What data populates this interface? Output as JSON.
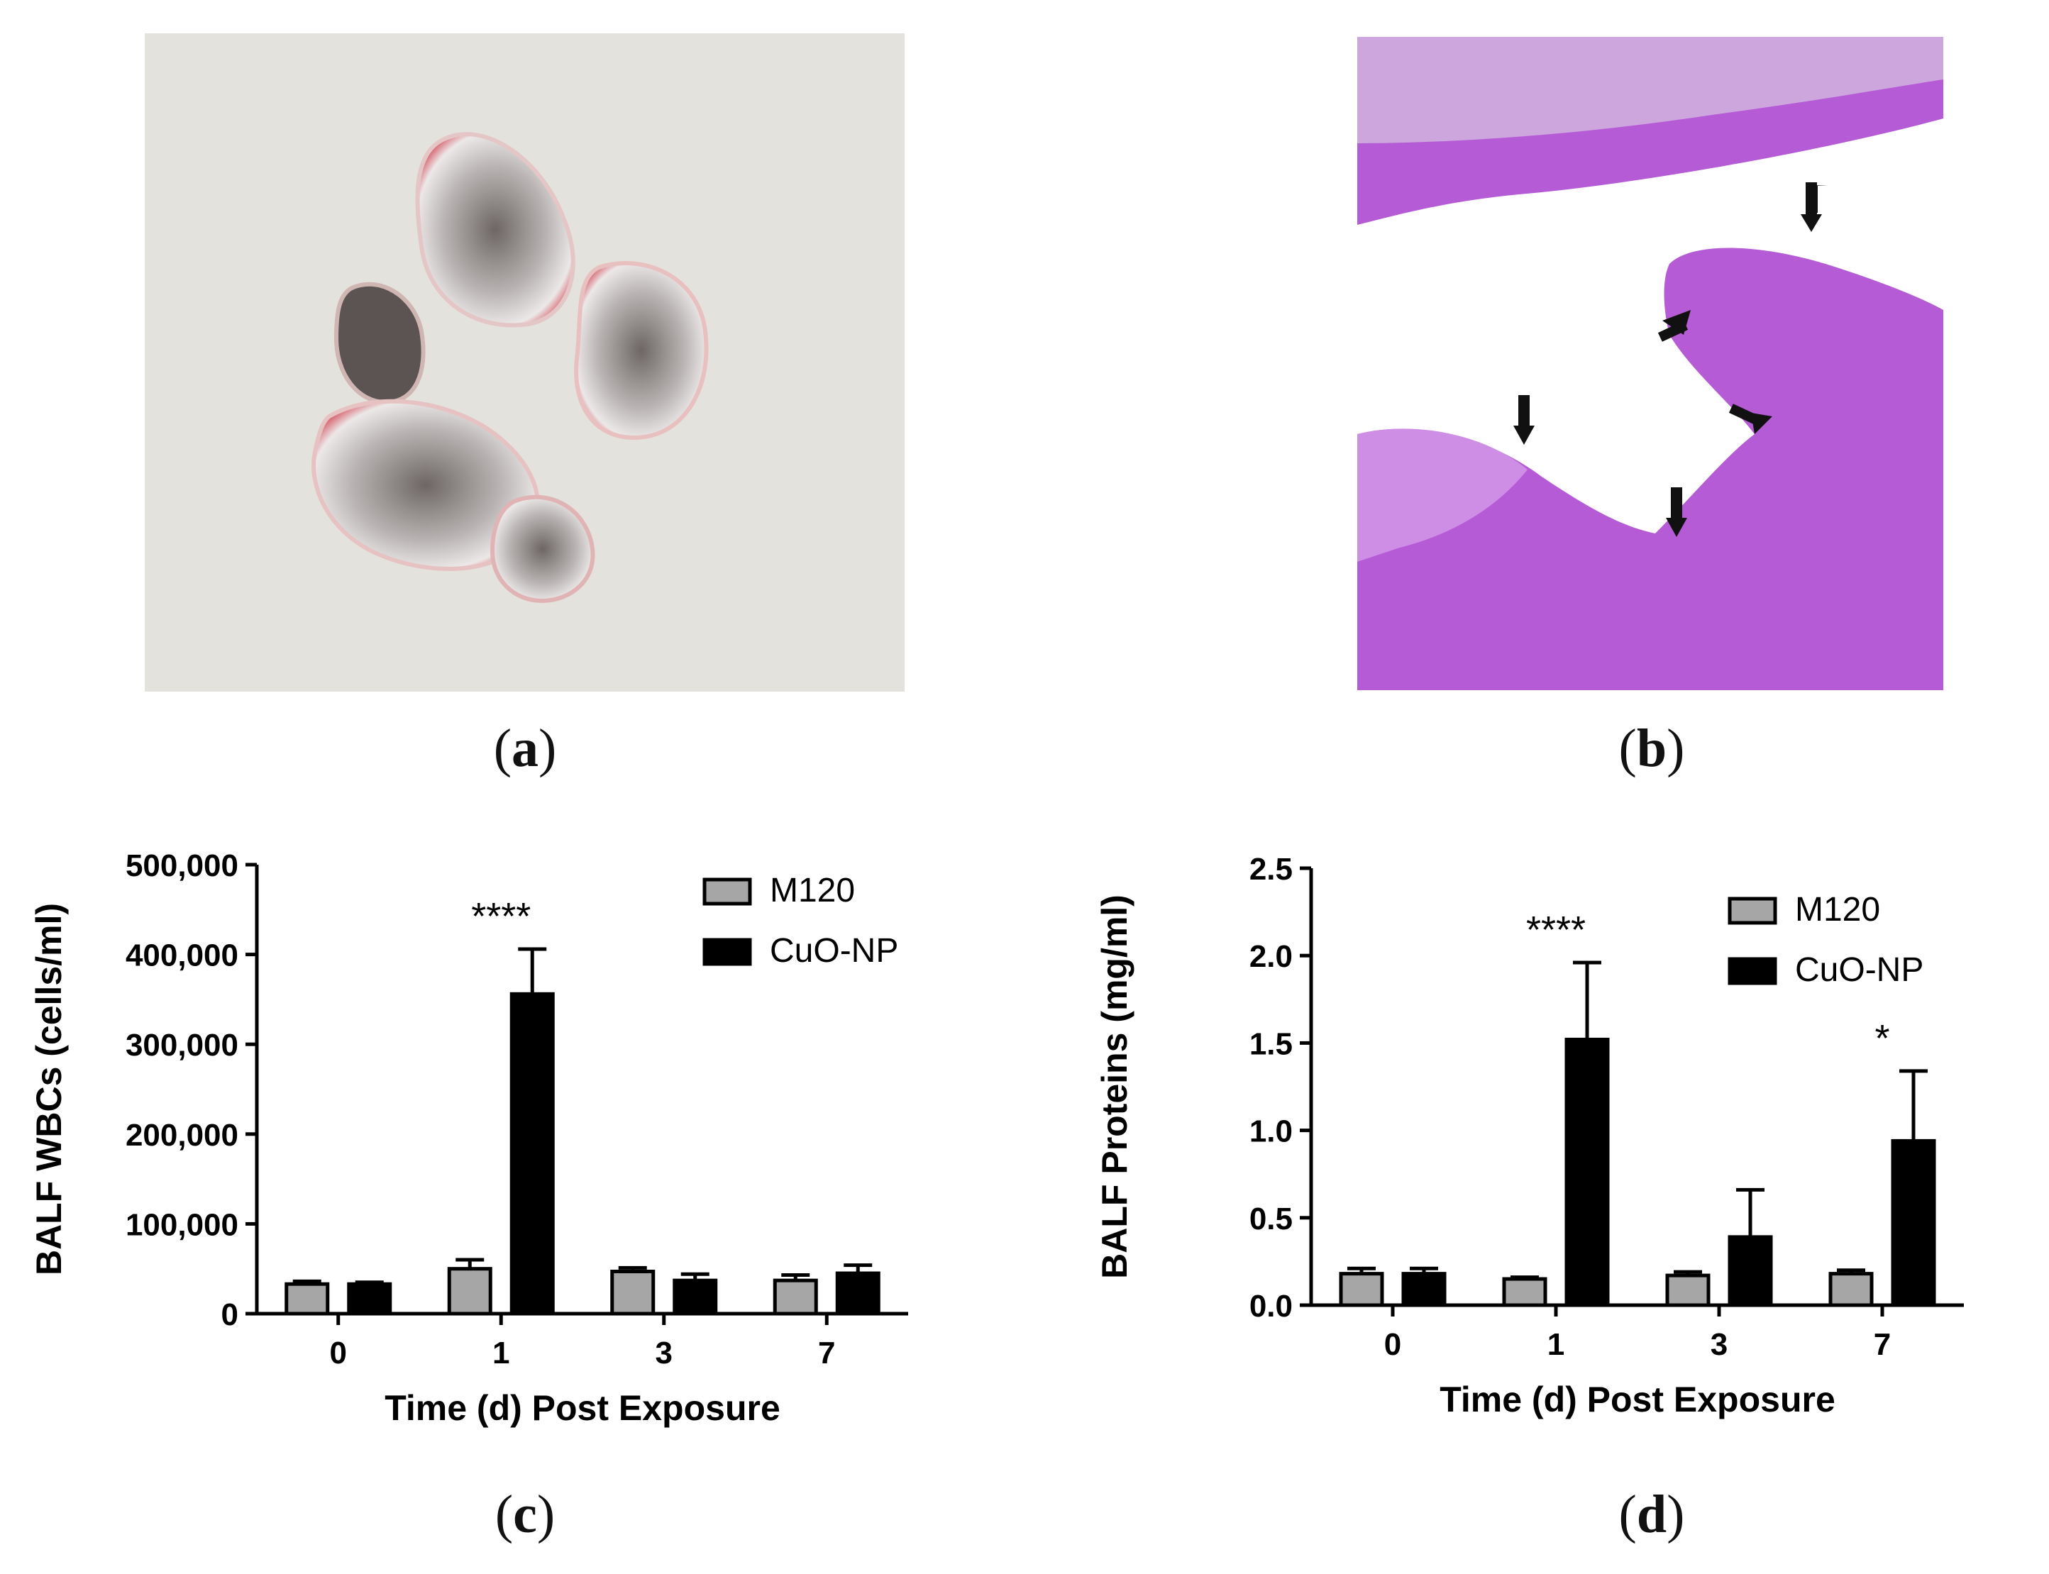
{
  "panels": {
    "a": {
      "label_open": "(",
      "label_letter": "a",
      "label_close": ")"
    },
    "b": {
      "label_open": "(",
      "label_letter": "b",
      "label_close": ")"
    },
    "c": {
      "label_open": "(",
      "label_letter": "c",
      "label_close": ")"
    },
    "d": {
      "label_open": "(",
      "label_letter": "d",
      "label_close": ")"
    }
  },
  "colors": {
    "m120": "#a6a6a6",
    "cuo": "#000000",
    "tissue": "#b65bd6",
    "background_photo": "#e4e2dc"
  },
  "chart_data": [
    {
      "type": "bar",
      "categories": [
        "0",
        "1",
        "3",
        "7"
      ],
      "xlabel": "Time (d) Post Exposure",
      "ylabel": "BALF WBCs (cells/ml)",
      "ylim": [
        0,
        500000
      ],
      "yticks": [
        "0",
        "100,000",
        "200,000",
        "300,000",
        "400,000",
        "500,000"
      ],
      "legend_position": "top-right",
      "series": [
        {
          "name": "M120",
          "values": [
            33000,
            50000,
            47000,
            37000
          ],
          "errors": [
            3000,
            10000,
            4000,
            6000
          ]
        },
        {
          "name": "CuO-NP",
          "values": [
            33000,
            356000,
            37000,
            45000
          ],
          "errors": [
            2000,
            50000,
            7000,
            9000
          ]
        }
      ],
      "annotations": [
        {
          "category": "1",
          "text": "****"
        }
      ]
    },
    {
      "type": "bar",
      "categories": [
        "0",
        "1",
        "3",
        "7"
      ],
      "xlabel": "Time (d) Post Exposure",
      "ylabel": "BALF Proteins (mg/ml)",
      "ylim": [
        0,
        2.5
      ],
      "yticks": [
        "0.0",
        "0.5",
        "1.0",
        "1.5",
        "2.0",
        "2.5"
      ],
      "legend_position": "top-right",
      "series": [
        {
          "name": "M120",
          "values": [
            0.18,
            0.15,
            0.17,
            0.18
          ],
          "errors": [
            0.03,
            0.01,
            0.02,
            0.02
          ]
        },
        {
          "name": "CuO-NP",
          "values": [
            0.18,
            1.52,
            0.39,
            0.94
          ],
          "errors": [
            0.03,
            0.44,
            0.27,
            0.4
          ]
        }
      ],
      "annotations": [
        {
          "category": "1",
          "text": "****"
        },
        {
          "category": "7",
          "text": "*"
        }
      ]
    }
  ]
}
